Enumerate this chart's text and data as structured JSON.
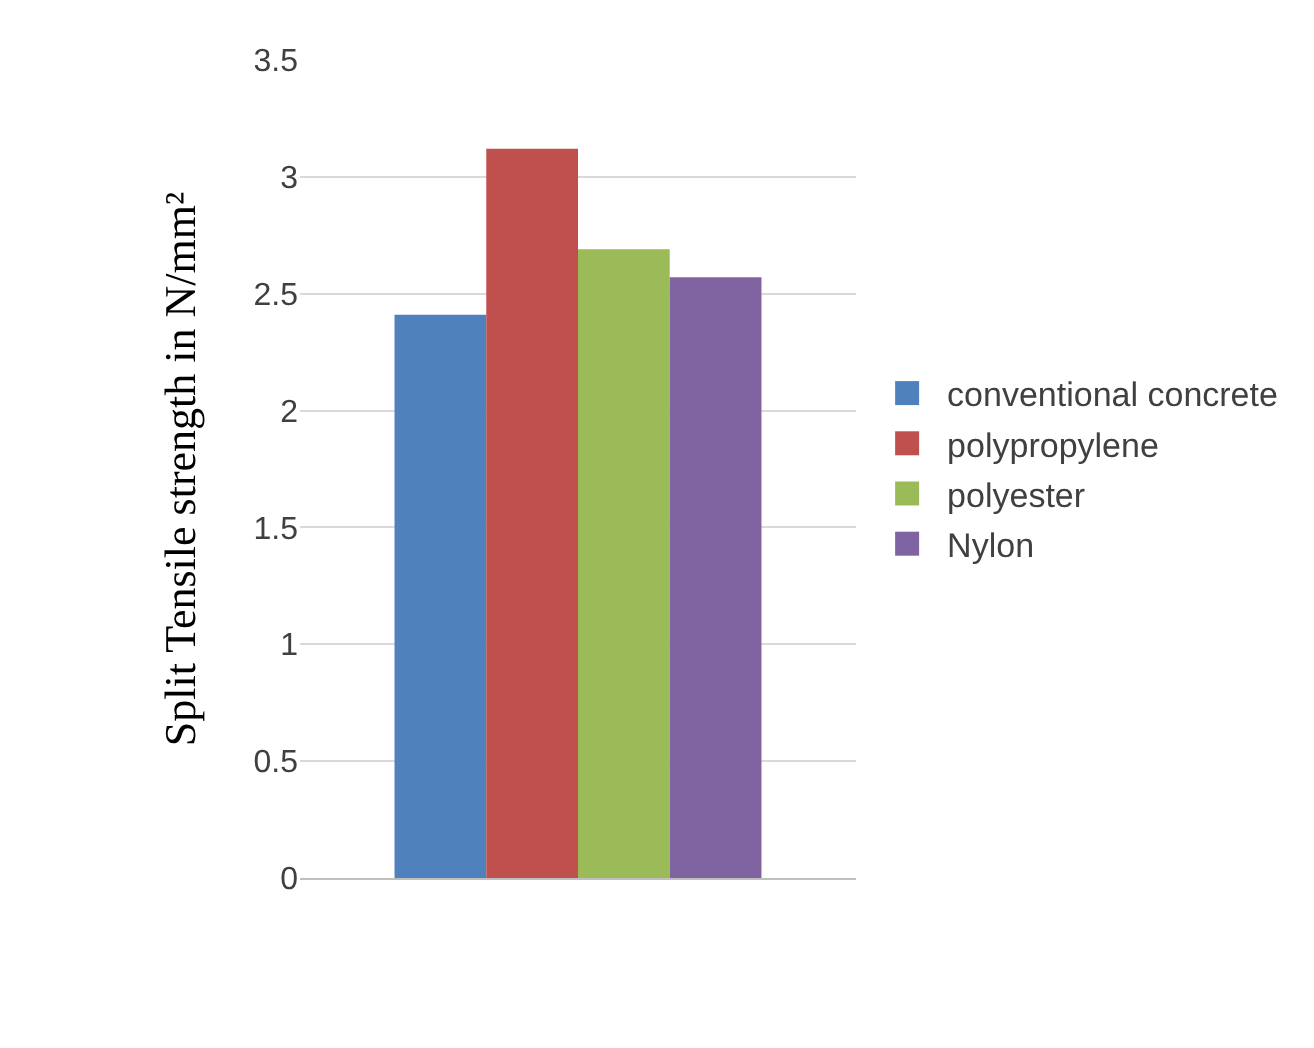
{
  "chart_data": {
    "type": "bar",
    "ylabel": "Split Tensile strength in N/mm²",
    "categories": [
      null
    ],
    "series": [
      {
        "name": "conventional concrete",
        "color": "#4f81bd",
        "values": [
          2.41
        ]
      },
      {
        "name": "polypropylene",
        "color": "#c0504d",
        "values": [
          3.12
        ]
      },
      {
        "name": "polyester",
        "color": "#9bbb59",
        "values": [
          2.69
        ]
      },
      {
        "name": "Nylon",
        "color": "#8064a2",
        "values": [
          2.57
        ]
      }
    ],
    "ylim": [
      0,
      3.5
    ],
    "yticks": [
      0,
      0.5,
      1,
      1.5,
      2,
      2.5,
      3,
      3.5
    ],
    "grid": "y",
    "legend": "right"
  }
}
